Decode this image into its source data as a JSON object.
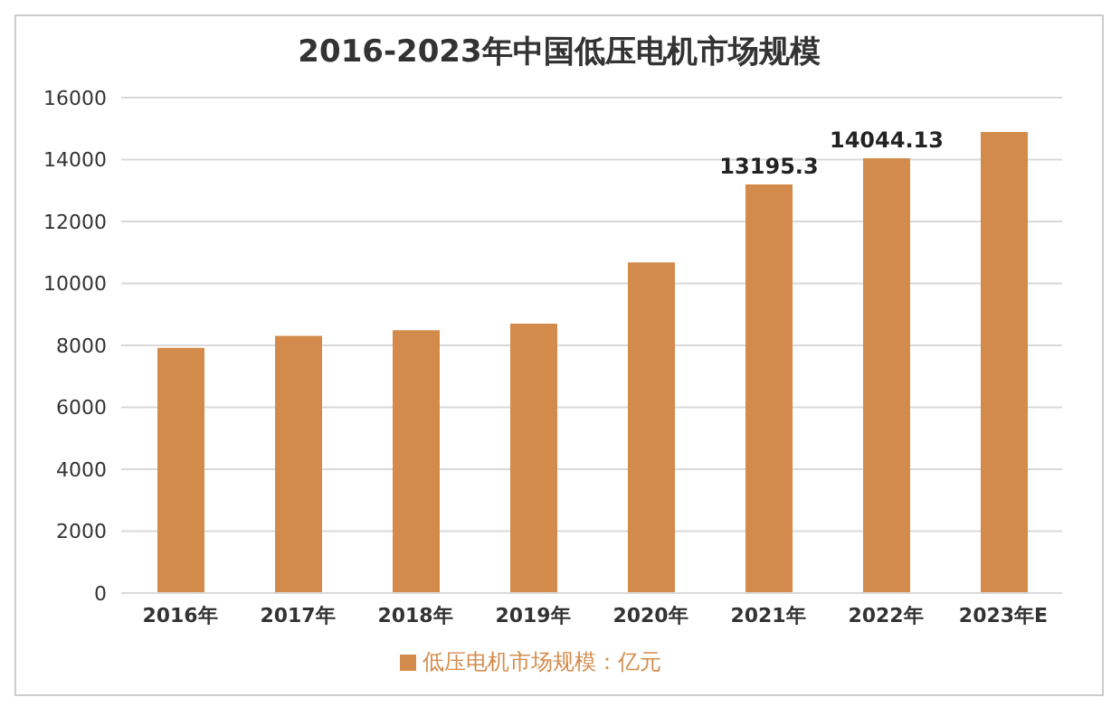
{
  "chart_data": {
    "type": "bar",
    "title": "2016-2023年中国低压电机市场规模",
    "categories": [
      "2016年",
      "2017年",
      "2018年",
      "2019年",
      "2020年",
      "2021年",
      "2022年",
      "2023年E"
    ],
    "series": [
      {
        "name": "低压电机市场规模：亿元",
        "color": "#d38b4b",
        "values": [
          7920,
          8310,
          8490,
          8700,
          10680,
          13195.3,
          14044.13,
          14890
        ],
        "value_labels": [
          null,
          null,
          null,
          null,
          null,
          "13195.3",
          "14044.13",
          null
        ]
      }
    ],
    "ylim": [
      0,
      16000
    ],
    "yticks": [
      0,
      2000,
      4000,
      6000,
      8000,
      10000,
      12000,
      14000,
      16000
    ],
    "grid": "y",
    "legend": "bottom"
  }
}
